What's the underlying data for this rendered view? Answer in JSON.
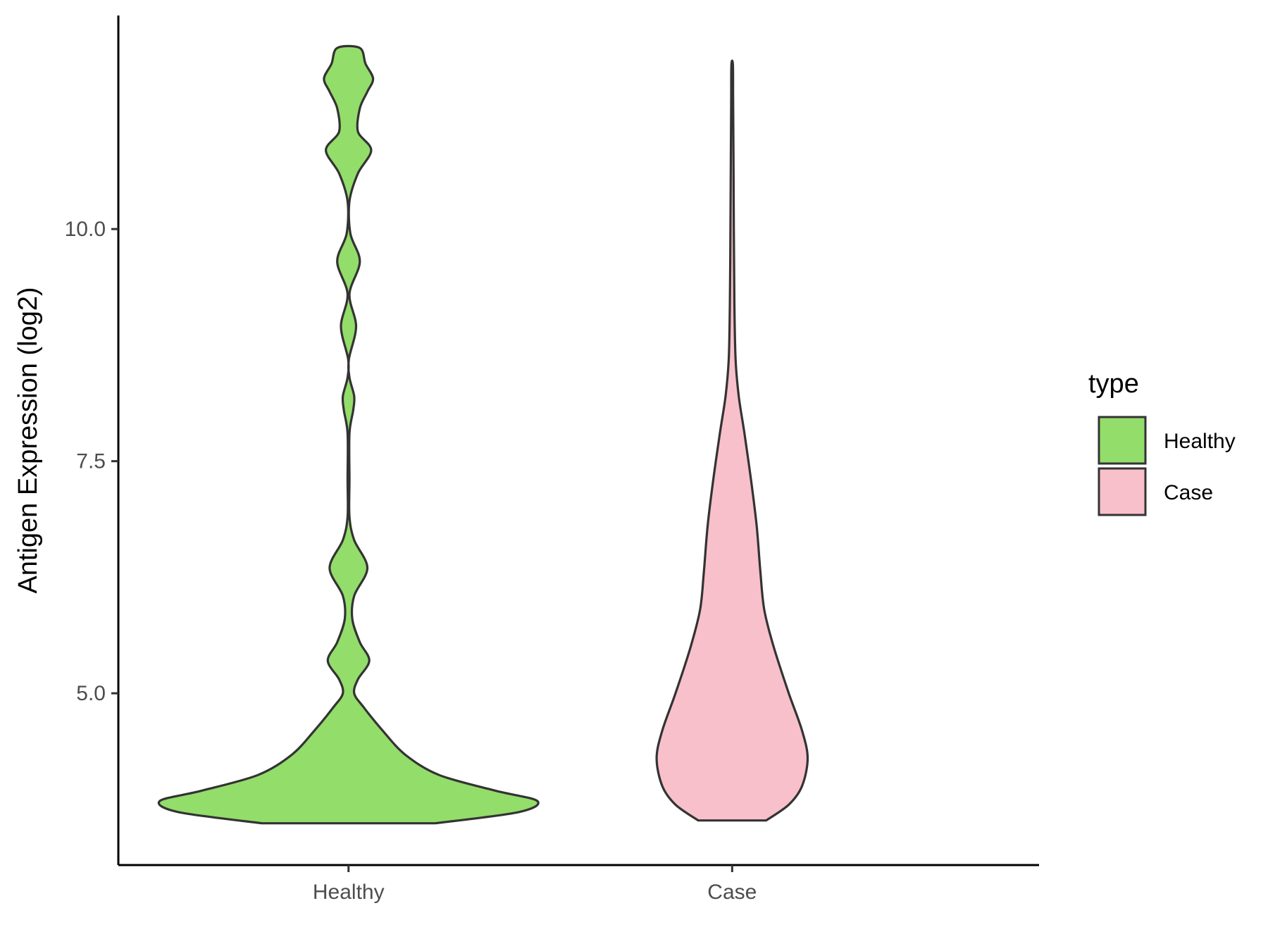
{
  "chart_data": {
    "type": "violin",
    "ylabel": "Antigen Expression (log2)",
    "yticks": [
      5.0,
      7.5,
      10.0
    ],
    "ytick_labels": [
      "5.0",
      "7.5",
      "10.0"
    ],
    "ylim": [
      3.15,
      12.3
    ],
    "categories": [
      "Healthy",
      "Case"
    ],
    "legend": {
      "title": "type",
      "position": "right",
      "entries": [
        {
          "label": "Healthy",
          "color": "#93dd6a"
        },
        {
          "label": "Case",
          "color": "#f8c0cb"
        }
      ]
    },
    "series": [
      {
        "name": "Healthy",
        "color": "#93dd6a",
        "min": 3.6,
        "max": 11.95,
        "density_profile": [
          [
            3.6,
            0.46
          ],
          [
            3.72,
            0.9
          ],
          [
            3.84,
            1.0
          ],
          [
            3.95,
            0.78
          ],
          [
            4.12,
            0.48
          ],
          [
            4.34,
            0.3
          ],
          [
            4.6,
            0.18
          ],
          [
            4.85,
            0.08
          ],
          [
            5.0,
            0.03
          ],
          [
            5.15,
            0.05
          ],
          [
            5.35,
            0.11
          ],
          [
            5.55,
            0.06
          ],
          [
            5.8,
            0.02
          ],
          [
            6.05,
            0.03
          ],
          [
            6.35,
            0.1
          ],
          [
            6.65,
            0.03
          ],
          [
            6.9,
            0.005
          ],
          [
            7.3,
            0.005
          ],
          [
            7.8,
            0.005
          ],
          [
            8.05,
            0.025
          ],
          [
            8.2,
            0.03
          ],
          [
            8.4,
            0.005
          ],
          [
            8.6,
            0.002
          ],
          [
            8.95,
            0.04
          ],
          [
            9.3,
            0.005
          ],
          [
            9.65,
            0.06
          ],
          [
            9.95,
            0.01
          ],
          [
            10.3,
            0.005
          ],
          [
            10.6,
            0.05
          ],
          [
            10.85,
            0.12
          ],
          [
            11.05,
            0.05
          ],
          [
            11.3,
            0.06
          ],
          [
            11.48,
            0.1
          ],
          [
            11.62,
            0.13
          ],
          [
            11.78,
            0.09
          ],
          [
            11.95,
            0.06
          ]
        ]
      },
      {
        "name": "Case",
        "color": "#f8c0cb",
        "min": 3.63,
        "max": 11.77,
        "density_profile": [
          [
            3.63,
            0.18
          ],
          [
            3.8,
            0.3
          ],
          [
            4.0,
            0.37
          ],
          [
            4.3,
            0.4
          ],
          [
            4.6,
            0.37
          ],
          [
            5.0,
            0.3
          ],
          [
            5.5,
            0.22
          ],
          [
            5.9,
            0.17
          ],
          [
            6.3,
            0.15
          ],
          [
            6.8,
            0.13
          ],
          [
            7.3,
            0.1
          ],
          [
            7.8,
            0.065
          ],
          [
            8.2,
            0.035
          ],
          [
            8.6,
            0.018
          ],
          [
            9.2,
            0.012
          ],
          [
            10.0,
            0.009
          ],
          [
            10.8,
            0.007
          ],
          [
            11.4,
            0.005
          ],
          [
            11.77,
            0.004
          ]
        ]
      }
    ]
  }
}
